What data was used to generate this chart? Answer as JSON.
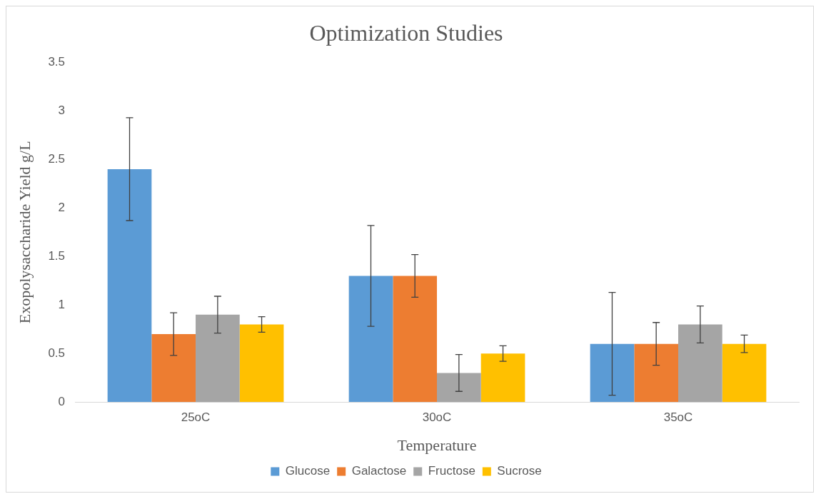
{
  "chart_data": {
    "type": "bar",
    "title": "Optimization Studies",
    "xlabel": "Temperature",
    "ylabel": "Exopolysaccharide Yield g/L",
    "categories": [
      "25oC",
      "30oC",
      "35oC"
    ],
    "series": [
      {
        "name": "Glucose",
        "color": "#5b9bd5",
        "values": [
          2.4,
          1.3,
          0.6
        ],
        "errors": [
          0.53,
          0.52,
          0.53
        ]
      },
      {
        "name": "Galactose",
        "color": "#ed7d31",
        "values": [
          0.7,
          1.3,
          0.6
        ],
        "errors": [
          0.22,
          0.22,
          0.22
        ]
      },
      {
        "name": "Fructose",
        "color": "#a5a5a5",
        "values": [
          0.9,
          0.3,
          0.8
        ],
        "errors": [
          0.19,
          0.19,
          0.19
        ]
      },
      {
        "name": "Sucrose",
        "color": "#ffc000",
        "values": [
          0.8,
          0.5,
          0.6
        ],
        "errors": [
          0.08,
          0.08,
          0.09
        ]
      }
    ],
    "ylim": [
      0,
      3.5
    ],
    "yticks": [
      0,
      0.5,
      1,
      1.5,
      2,
      2.5,
      3,
      3.5
    ],
    "grid": false,
    "legend": "bottom"
  }
}
